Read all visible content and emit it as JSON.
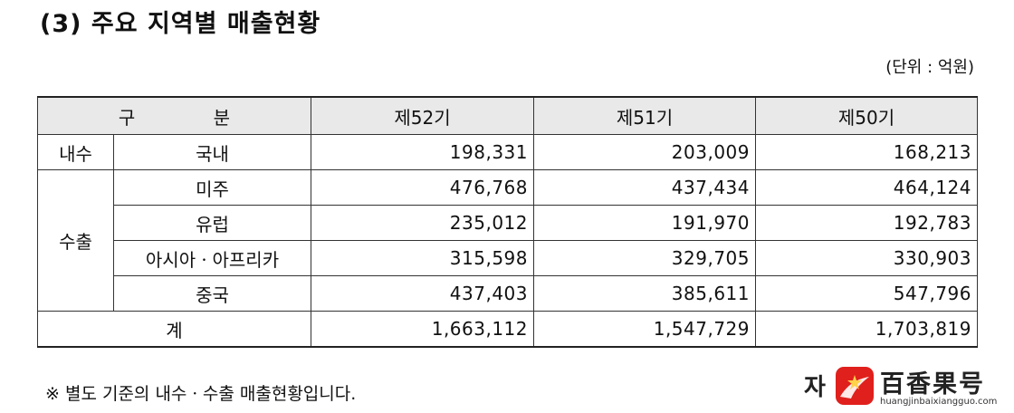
{
  "title": "(3) 주요 지역별 매출현황",
  "unit": "(단위 : 억원)",
  "table": {
    "header": {
      "category": "구 분",
      "periods": [
        "제52기",
        "제51기",
        "제50기"
      ]
    },
    "domestic": {
      "group": "내수",
      "rows": [
        {
          "region": "국내",
          "values": [
            "198,331",
            "203,009",
            "168,213"
          ]
        }
      ]
    },
    "export": {
      "group": "수출",
      "rows": [
        {
          "region": "미주",
          "values": [
            "476,768",
            "437,434",
            "464,124"
          ]
        },
        {
          "region": "유럽",
          "values": [
            "235,012",
            "191,970",
            "192,783"
          ]
        },
        {
          "region": "아시아ㆍ아프리카",
          "values": [
            "315,598",
            "329,705",
            "330,903"
          ]
        },
        {
          "region": "중국",
          "values": [
            "437,403",
            "385,611",
            "547,796"
          ]
        }
      ]
    },
    "total": {
      "label": "계",
      "values": [
        "1,663,112",
        "1,547,729",
        "1,703,819"
      ]
    }
  },
  "note": "※ 별도 기준의 내수ㆍ수출 매출현황입니다.",
  "watermark": {
    "fragment": "자",
    "name": "百香果号",
    "url": "huangjinbaixiangguo.com",
    "brand_color": "#e0201c"
  }
}
